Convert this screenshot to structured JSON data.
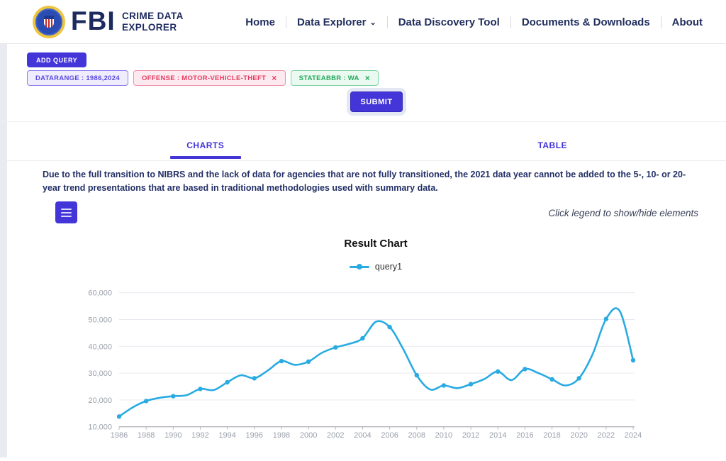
{
  "header": {
    "brand": {
      "fbi": "FBI",
      "line1": "CRIME DATA",
      "line2": "EXPLORER"
    },
    "nav": {
      "home": "Home",
      "data_explorer": "Data Explorer",
      "data_discovery": "Data Discovery Tool",
      "documents": "Documents & Downloads",
      "about": "About"
    }
  },
  "query_builder": {
    "add_query_label": "ADD QUERY",
    "chips": [
      {
        "label": "DATARANGE : 1986,2024",
        "closable": false
      },
      {
        "label": "OFFENSE : MOTOR-VEHICLE-THEFT",
        "closable": true
      },
      {
        "label": "STATEABBR : WA",
        "closable": true
      }
    ],
    "close_glyph": "×",
    "submit_label": "SUBMIT"
  },
  "tabs": {
    "charts": "CHARTS",
    "table": "TABLE",
    "active": "CHARTS"
  },
  "notice": "Due to the full transition to NIBRS and the lack of data for agencies that are not fully transitioned, the 2021 data year cannot be added to the 5-, 10- or 20-year trend presentations that are based in traditional methodologies used with summary data.",
  "chart_section": {
    "legend_hint": "Click legend to show/hide elements",
    "title": "Result Chart"
  },
  "chart_data": {
    "type": "line",
    "title": "Result Chart",
    "legend_position": "top",
    "grid": true,
    "xlim": [
      1986,
      2024
    ],
    "ylim": [
      10000,
      60000
    ],
    "x_ticks": [
      1986,
      1988,
      1990,
      1992,
      1994,
      1996,
      1998,
      2000,
      2002,
      2004,
      2006,
      2008,
      2010,
      2012,
      2014,
      2016,
      2018,
      2020,
      2022,
      2024
    ],
    "y_ticks": [
      10000,
      20000,
      30000,
      40000,
      50000,
      60000
    ],
    "y_tick_labels": [
      "10,000",
      "20,000",
      "30,000",
      "40,000",
      "50,000",
      "60,000"
    ],
    "legend": [
      {
        "name": "query1",
        "color": "#29abe2"
      }
    ],
    "series": [
      {
        "name": "query1",
        "color": "#29abe2",
        "marker_every": 2,
        "x": [
          1986,
          1987,
          1988,
          1989,
          1990,
          1991,
          1992,
          1993,
          1994,
          1995,
          1996,
          1997,
          1998,
          1999,
          2000,
          2001,
          2002,
          2003,
          2004,
          2005,
          2006,
          2007,
          2008,
          2009,
          2010,
          2011,
          2012,
          2013,
          2014,
          2015,
          2016,
          2017,
          2018,
          2019,
          2020,
          2021,
          2022,
          2023,
          2024
        ],
        "values": [
          13800,
          17200,
          19600,
          20800,
          21400,
          21800,
          24100,
          23700,
          26600,
          29200,
          28100,
          31000,
          34500,
          33100,
          34300,
          37600,
          39600,
          40900,
          43000,
          49200,
          47200,
          39000,
          29200,
          23900,
          25400,
          24400,
          25900,
          27800,
          30600,
          27400,
          31500,
          30000,
          27700,
          25400,
          28100,
          37000,
          50200,
          53200,
          34800
        ]
      }
    ]
  },
  "colors": {
    "accent": "#4435d8",
    "line": "#29abe2",
    "navy": "#222f5e"
  }
}
